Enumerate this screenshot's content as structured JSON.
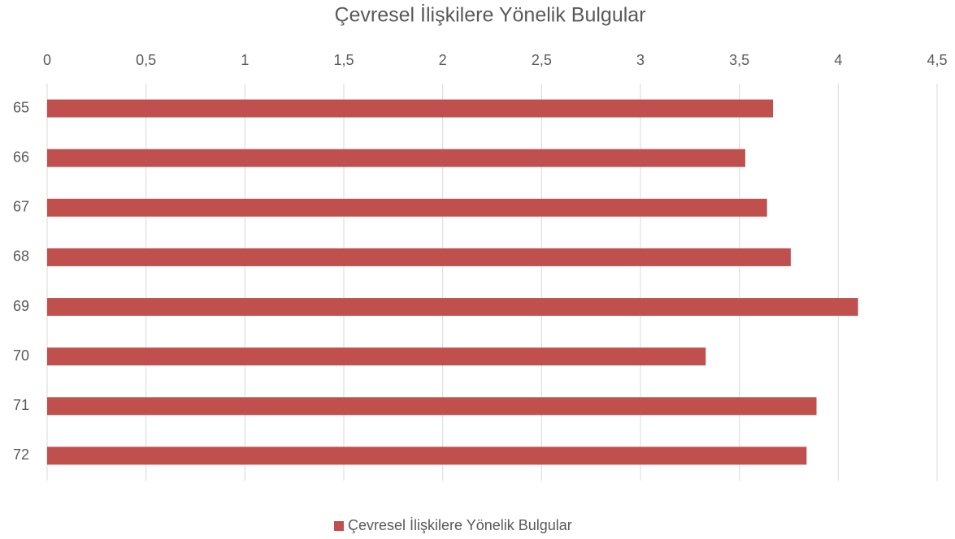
{
  "chart_data": {
    "type": "bar",
    "orientation": "horizontal",
    "title": "Çevresel İlişkilere Yönelik Bulgular",
    "categories": [
      "65",
      "66",
      "67",
      "68",
      "69",
      "70",
      "71",
      "72"
    ],
    "series": [
      {
        "name": "Çevresel İlişkilere Yönelik Bulgular",
        "color": "#c0504d",
        "values": [
          3.67,
          3.53,
          3.64,
          3.76,
          4.1,
          3.33,
          3.89,
          3.84
        ]
      }
    ],
    "xlim": [
      0,
      4.5
    ],
    "xticks": [
      0,
      {
        "value": 0.5,
        "label": "0,5"
      },
      1,
      {
        "value": 1.5,
        "label": "1,5"
      },
      2,
      {
        "value": 2.5,
        "label": "2,5"
      },
      3,
      {
        "value": 3.5,
        "label": "3,5"
      },
      4,
      {
        "value": 4.5,
        "label": "4,5"
      }
    ],
    "grid": true,
    "legend": "bottom"
  }
}
